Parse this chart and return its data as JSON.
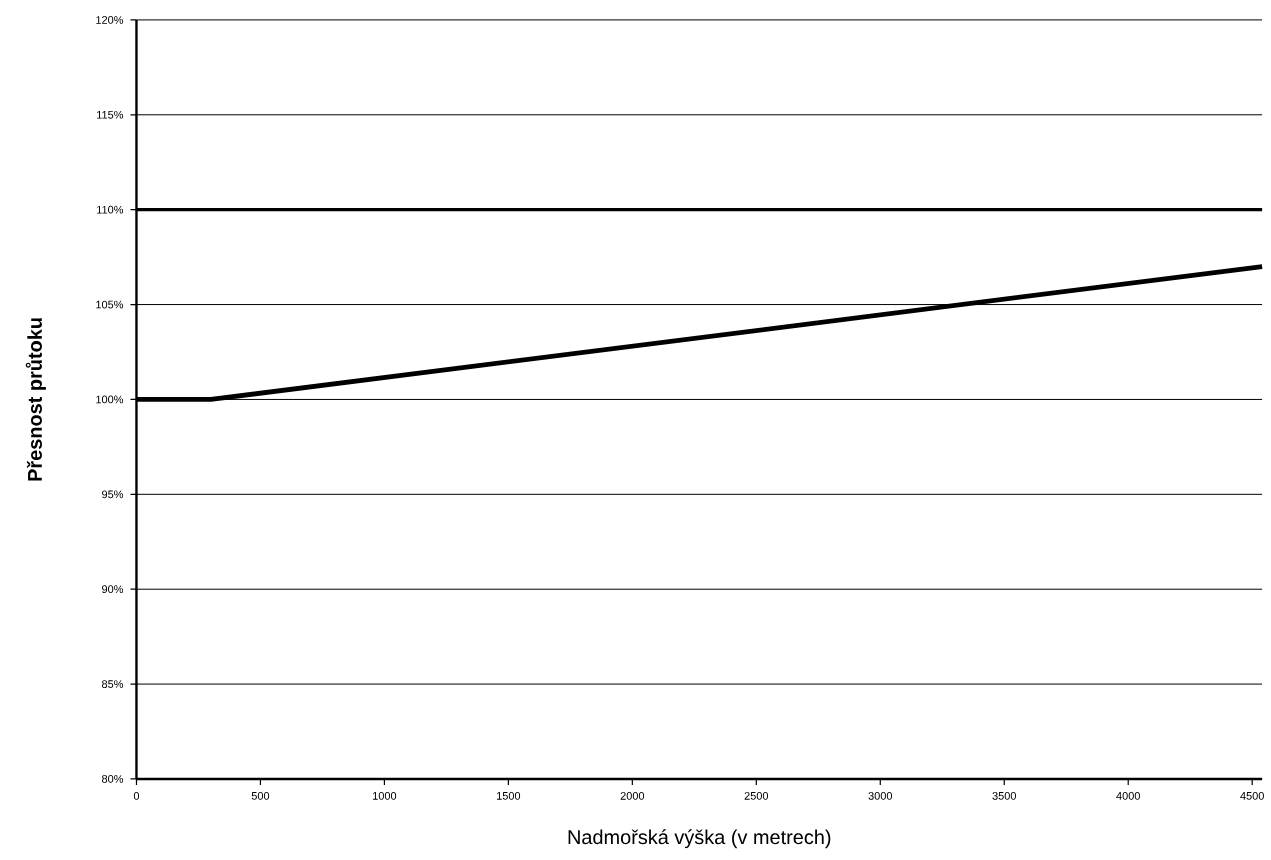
{
  "chart_data": {
    "type": "line",
    "xlabel": "Nadmořská výška (v metrech)",
    "ylabel": "Přesnost průtoku",
    "x": [
      0,
      300,
      4540
    ],
    "series": [
      {
        "color": "#000000",
        "values": [
          100,
          100,
          107
        ]
      }
    ],
    "xlim": [
      0,
      4540
    ],
    "xticks": [
      0,
      500,
      1000,
      1500,
      2000,
      2500,
      3000,
      3500,
      4000,
      4500
    ],
    "ylim": [
      80,
      120
    ],
    "yticks": [
      {
        "value": 80,
        "label": "80%"
      },
      {
        "value": 85,
        "label": "85%"
      },
      {
        "value": 90,
        "label": "90%"
      },
      {
        "value": 95,
        "label": "95%"
      },
      {
        "value": 100,
        "label": "100%"
      },
      {
        "value": 105,
        "label": "105%"
      },
      {
        "value": 110,
        "label": "110%"
      },
      {
        "value": 115,
        "label": "115%"
      },
      {
        "value": 120,
        "label": "120%"
      }
    ],
    "ref_lines": [
      {
        "axis": "y",
        "value": 110,
        "color": "#000000"
      }
    ],
    "grid": "y",
    "marker": "none",
    "line_style": "solid"
  }
}
